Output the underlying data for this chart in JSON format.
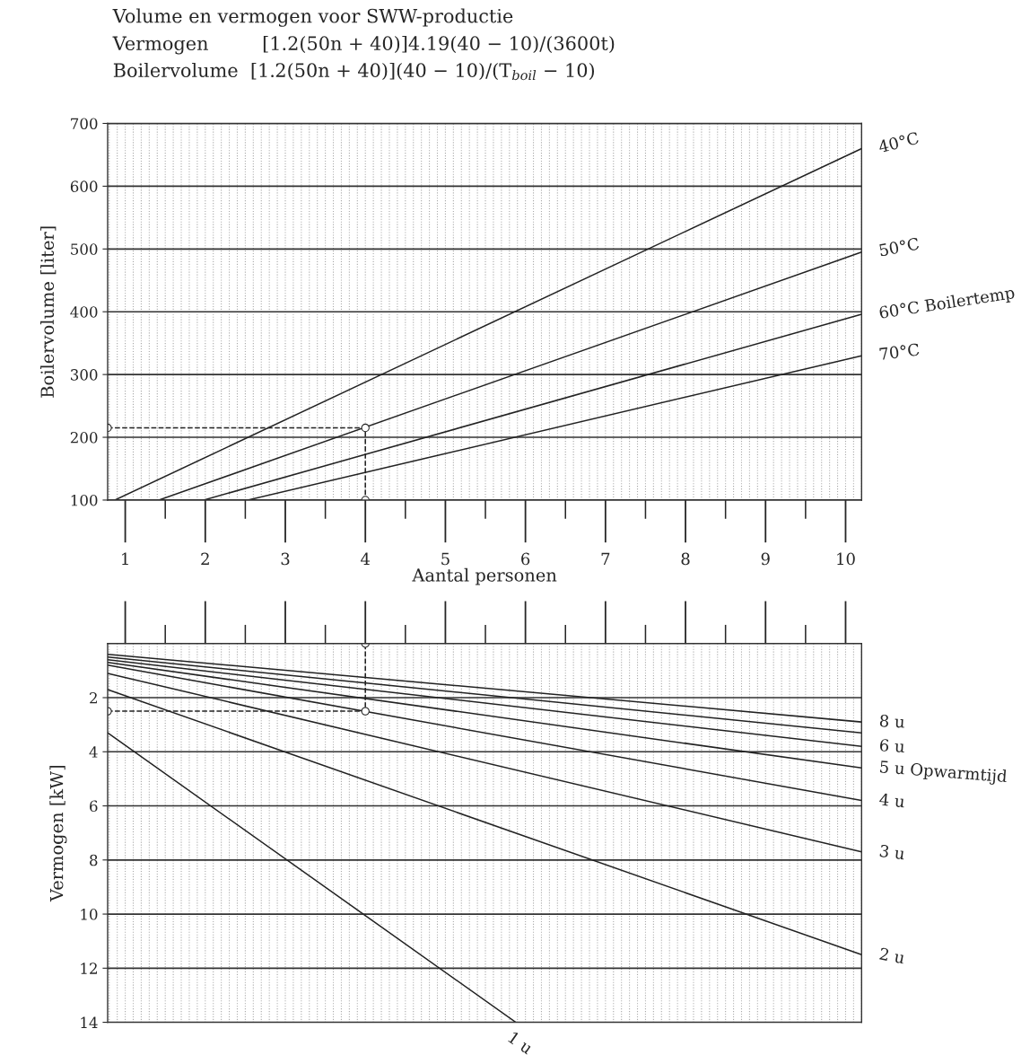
{
  "chart_data": [
    {
      "type": "line",
      "title": "Volume en vermogen voor SWW-productie",
      "subtitle": "Vermogen         [1.2(50n + 40)]4.19(40 − 10)/(3600t)\nBoilervolume  [1.2(50n + 40)](40 − 10)/(T$_{boil}$ − 10)",
      "xlabel": "Aantal personen",
      "ylabel": "Boilervolume [liter]",
      "xlim": [
        0.78,
        10.2
      ],
      "xticks": [
        1,
        {
          "value": 1.5,
          "label": null
        },
        2,
        {
          "value": 2.5,
          "label": null
        },
        3,
        {
          "value": 3.5,
          "label": null
        },
        4,
        {
          "value": 4.5,
          "label": null
        },
        5,
        {
          "value": 5.5,
          "label": null
        },
        6,
        {
          "value": 6.5,
          "label": null
        },
        7,
        {
          "value": 7.5,
          "label": null
        },
        8,
        {
          "value": 8.5,
          "label": null
        },
        9,
        {
          "value": 9.5,
          "label": null
        },
        10
      ],
      "ylim": [
        100,
        700
      ],
      "yticks": [
        100,
        200,
        300,
        400,
        500,
        600,
        700
      ],
      "grid": true,
      "legend": false,
      "series": [
        {
          "name": "40°C",
          "color": "#222222",
          "x": [
            0.87,
            10.2
          ],
          "values": [
            100,
            660
          ],
          "line_style": "solid",
          "marker": "none"
        },
        {
          "name": "50°C",
          "color": "#222222",
          "x": [
            1.42,
            10.2
          ],
          "values": [
            100,
            495
          ],
          "line_style": "solid",
          "marker": "none"
        },
        {
          "name": "60°C Boilertemp",
          "color": "#222222",
          "x": [
            1.98,
            10.2
          ],
          "values": [
            100,
            396
          ],
          "line_style": "solid",
          "marker": "none"
        },
        {
          "name": "70°C",
          "color": "#222222",
          "x": [
            2.53,
            10.2
          ],
          "values": [
            100,
            330
          ],
          "line_style": "solid",
          "marker": "none"
        },
        {
          "color": "#222222",
          "x": [
            0.78,
            4,
            4
          ],
          "values": [
            215,
            215,
            100
          ],
          "line_style": "dashed",
          "marker": "circle"
        }
      ]
    },
    {
      "type": "line",
      "ylabel": "Vermogen [kW]",
      "tick_labels": "y",
      "xlim": [
        0.78,
        10.2
      ],
      "xticks": [
        1,
        {
          "value": 1.5,
          "label": null
        },
        2,
        {
          "value": 2.5,
          "label": null
        },
        3,
        {
          "value": 3.5,
          "label": null
        },
        4,
        {
          "value": 4.5,
          "label": null
        },
        5,
        {
          "value": 5.5,
          "label": null
        },
        6,
        {
          "value": 6.5,
          "label": null
        },
        7,
        {
          "value": 7.5,
          "label": null
        },
        8,
        {
          "value": 8.5,
          "label": null
        },
        9,
        {
          "value": 9.5,
          "label": null
        },
        10
      ],
      "ylim": [
        14,
        0
      ],
      "yticks": [
        2,
        4,
        6,
        8,
        10,
        12,
        14
      ],
      "grid": true,
      "legend": false,
      "series": [
        {
          "name": "8 u",
          "color": "#222222",
          "x": [
            0.78,
            10.2
          ],
          "values": [
            0.4,
            2.9
          ],
          "line_style": "solid",
          "marker": "none"
        },
        {
          "color": "#222222",
          "x": [
            0.78,
            10.2
          ],
          "values": [
            0.5,
            3.3
          ],
          "line_style": "solid",
          "marker": "none"
        },
        {
          "name": "6 u",
          "color": "#222222",
          "x": [
            0.78,
            10.2
          ],
          "values": [
            0.6,
            3.8
          ],
          "line_style": "solid",
          "marker": "none"
        },
        {
          "name": "5 u Opwarmtijd",
          "color": "#222222",
          "x": [
            0.78,
            10.2
          ],
          "values": [
            0.7,
            4.6
          ],
          "line_style": "solid",
          "marker": "none"
        },
        {
          "name": "4 u",
          "color": "#222222",
          "x": [
            0.78,
            10.2
          ],
          "values": [
            0.8,
            5.8
          ],
          "line_style": "solid",
          "marker": "none"
        },
        {
          "name": "3 u",
          "color": "#222222",
          "x": [
            0.78,
            10.2
          ],
          "values": [
            1.1,
            7.7
          ],
          "line_style": "solid",
          "marker": "none"
        },
        {
          "name": "2 u",
          "color": "#222222",
          "x": [
            0.78,
            10.2
          ],
          "values": [
            1.7,
            11.5
          ],
          "line_style": "solid",
          "marker": "none"
        },
        {
          "name": "1 u",
          "color": "#222222",
          "x": [
            0.78,
            5.88
          ],
          "values": [
            3.3,
            14
          ],
          "line_style": "solid",
          "marker": "none"
        },
        {
          "color": "#222222",
          "x": [
            0.78,
            4,
            4
          ],
          "values": [
            2.5,
            2.5,
            0
          ],
          "line_style": "dashed",
          "marker": "circle"
        }
      ]
    }
  ]
}
